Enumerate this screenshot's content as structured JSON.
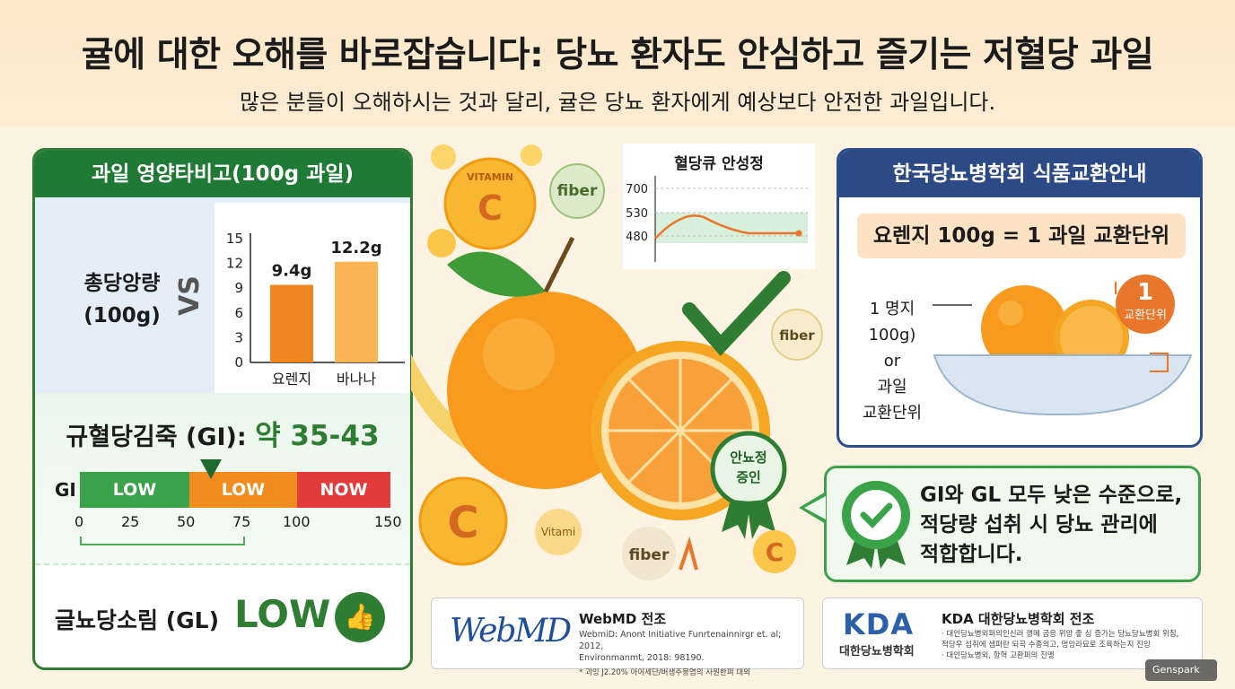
{
  "header": {
    "title": "귤에 대한 오해를 바로잡습니다: 당뇨 환자도 안심하고 즐기는 저혈당 과일",
    "subtitle": "많은 분들이 오해하시는 것과 달리, 귤은 당뇨 환자에게 예상보다 안전한 과일입니다."
  },
  "left_panel": {
    "heading": "과일 영양타비고(100g 과일)",
    "sugar_label_line1": "총당앙량",
    "sugar_label_line2": "(100g)",
    "arrow_glyph": "VS",
    "gi_title": "규혈당김죽 (GI):",
    "gi_value": "약 35-43",
    "gi_letter": "GI",
    "gi_segments": [
      "LOW",
      "LOW",
      "NOW"
    ],
    "gi_ticks": [
      "0",
      "25",
      "50",
      "75",
      "100",
      "150"
    ],
    "gl_label": "글뇨당소림 (GL)",
    "gl_value": "LOW",
    "thumb_glyph": "👍"
  },
  "chart_data": [
    {
      "type": "bar",
      "categories": [
        "요렌지",
        "바나나"
      ],
      "values": [
        9.4,
        12.2
      ],
      "value_labels": [
        "9.4g",
        "12.2g"
      ],
      "yticks": [
        "15",
        "12",
        "9",
        "6",
        "3",
        "0"
      ],
      "ylim": [
        0,
        15
      ],
      "colors": [
        "#f0861f",
        "#f9b555"
      ]
    },
    {
      "type": "line",
      "title": "혈당큐 안성정",
      "yticks": [
        "700",
        "530",
        "480"
      ],
      "band": [
        480,
        530
      ],
      "color": "#e8762b"
    }
  ],
  "center_art": {
    "vitamin_label": "VITAMIN",
    "c_letter": "C",
    "fiber": "fiber",
    "vitami": "Vitami",
    "badge_line1": "안뇨정",
    "badge_line2": "증인"
  },
  "right_panel": {
    "heading": "한국당뇨병학회 식품교환안내",
    "exchange": "요렌지 100g = 1 과일 교환단위",
    "bowl_line1": "1 명지",
    "bowl_line2": "100g)",
    "bowl_line3": "or",
    "bowl_line4": "과일",
    "bowl_line5": "교환단위",
    "unit_number": "1",
    "unit_text": "교환단위"
  },
  "speech": {
    "line1": "GI와 GL 모두 낮은 수준으로,",
    "line2": "적당량 섭취 시 당뇨 관리에",
    "line3": "적합합니다."
  },
  "sources": {
    "webmd_logo": "WebMD",
    "webmd_title": "WebMD 전조",
    "webmd_line1": "WebmiD: Anont Initiative Funrtenainnirgr et. al; 2012,",
    "webmd_line2": "Environmanmt, 2018: 98190.",
    "webmd_line3": "* 괴잉 J2.20% 아어세단/버생주뭉염의 사원한펴 대외",
    "kda_logo": "KDA",
    "kda_sub": "대한당뇨병학회",
    "kda_title": "KDA 대한당뇨병학회 전조",
    "kda_line1": "· 대인당뇨병외퍼의인신러 꼉메 곰응 위앙 좋 싱 증가는 당뇨당뇨병회 위침,",
    "kda_line2": "적당우 섬취에 샘퍼란 되곡 수종의고, 멍잉라묘로 조육하는지 진잉",
    "kda_line3": "· 대인당뇨병외, 항혁 고환퍼의 진맹"
  },
  "watermark": "Genspark"
}
